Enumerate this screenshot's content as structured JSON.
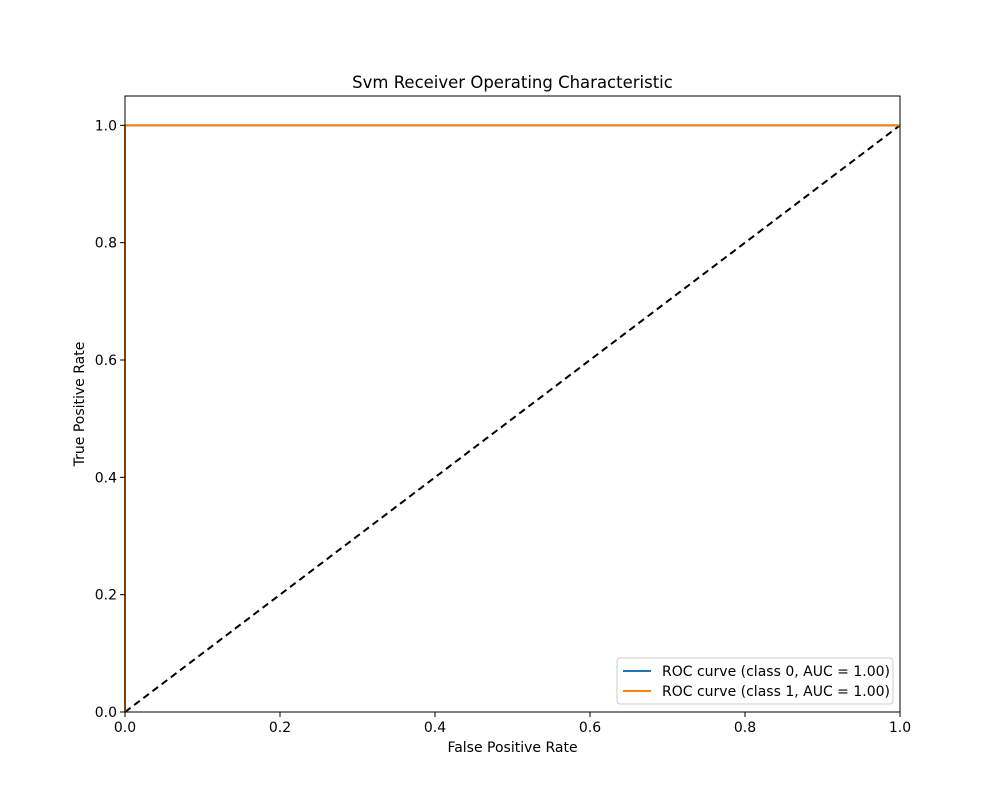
{
  "chart_data": {
    "type": "line",
    "title": "Svm Receiver Operating Characteristic",
    "xlabel": "False Positive Rate",
    "ylabel": "True Positive Rate",
    "xlim": [
      0.0,
      1.0
    ],
    "ylim": [
      0.0,
      1.05
    ],
    "xticks": [
      "0.0",
      "0.2",
      "0.4",
      "0.6",
      "0.8",
      "1.0"
    ],
    "yticks": [
      "0.0",
      "0.2",
      "0.4",
      "0.6",
      "0.8",
      "1.0"
    ],
    "grid": false,
    "legend_position": "lower-right",
    "series": [
      {
        "name": "ROC curve (class 0, AUC = 1.00)",
        "color": "#1f77b4",
        "x": [
          0.0,
          0.0,
          1.0
        ],
        "y": [
          0.0,
          1.0,
          1.0
        ]
      },
      {
        "name": "ROC curve (class 1, AUC = 1.00)",
        "color": "#ff7f0e",
        "x": [
          0.0,
          0.0,
          1.0
        ],
        "y": [
          0.0,
          1.0,
          1.0
        ]
      }
    ],
    "reference_line": {
      "color": "#000000",
      "style": "dashed",
      "x": [
        0.0,
        1.0
      ],
      "y": [
        0.0,
        1.0
      ]
    }
  }
}
